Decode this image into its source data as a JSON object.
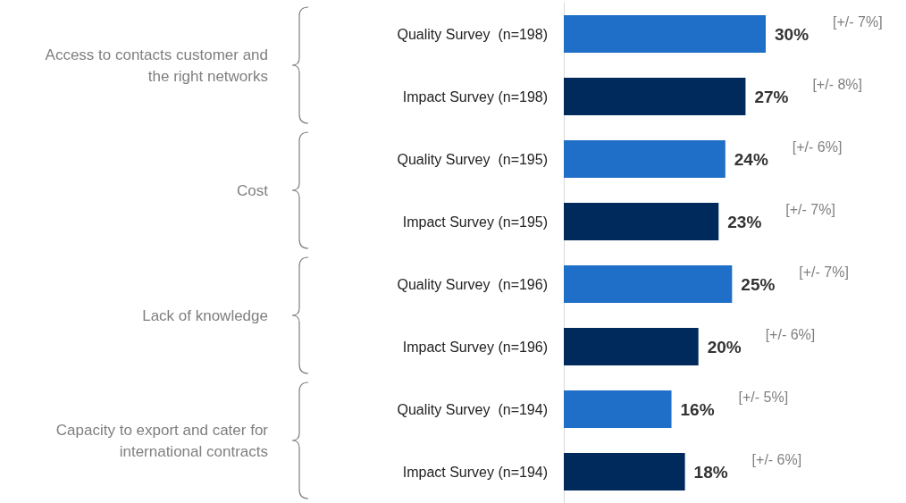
{
  "chart_data": {
    "type": "bar",
    "orientation": "horizontal",
    "categories": [
      "Quality Survey  (n=198)",
      "Impact Survey (n=198)",
      "Quality Survey  (n=195)",
      "Impact Survey (n=195)",
      "Quality Survey  (n=196)",
      "Impact Survey (n=196)",
      "Quality Survey  (n=194)",
      "Impact Survey (n=194)"
    ],
    "values": [
      30,
      27,
      24,
      23,
      25,
      20,
      16,
      18
    ],
    "value_labels": [
      "30%",
      "27%",
      "24%",
      "23%",
      "25%",
      "20%",
      "16%",
      "18%"
    ],
    "colors": [
      "#1f6ec8",
      "#002a5c",
      "#1f6ec8",
      "#002a5c",
      "#1f6ec8",
      "#002a5c",
      "#1f6ec8",
      "#002a5c"
    ],
    "tick_labels": "y",
    "annotations": [
      "Access  to contacts customer and\nthe right networks",
      "Cost",
      "Lack of knowledge",
      "Capacity to export and cater for\ninternational contracts",
      "[+/- 7%]",
      "[+/- 8%]",
      "[+/- 6%]",
      "[+/- 7%]",
      "[+/- 7%]",
      "[+/- 6%]",
      "[+/- 5%]",
      "[+/- 6%]"
    ]
  }
}
